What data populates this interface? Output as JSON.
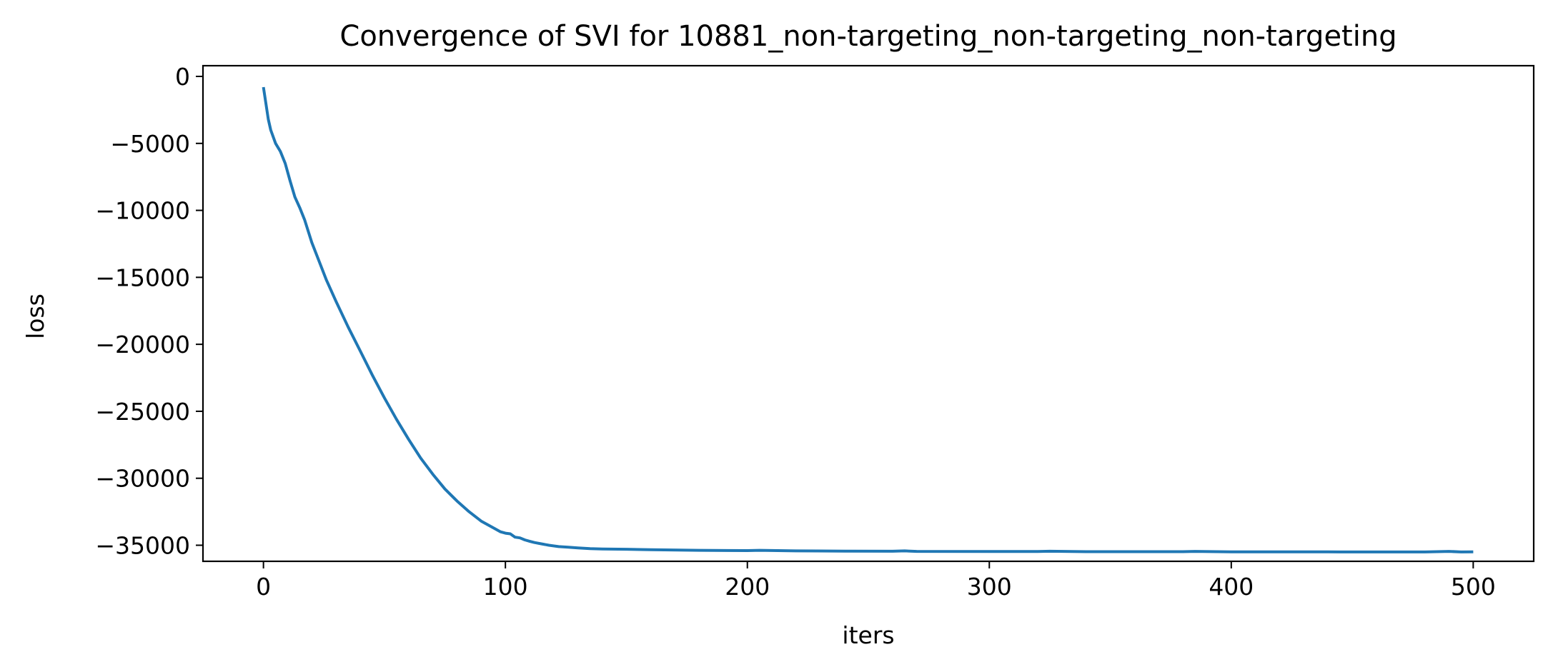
{
  "chart_data": {
    "type": "line",
    "title": "Convergence of SVI for 10881_non-targeting_non-targeting_non-targeting",
    "xlabel": "iters",
    "ylabel": "loss",
    "xlim": [
      -25,
      525
    ],
    "ylim": [
      -36200,
      800
    ],
    "xticks": [
      0,
      100,
      200,
      300,
      400,
      500
    ],
    "xtick_labels": [
      "0",
      "100",
      "200",
      "300",
      "400",
      "500"
    ],
    "yticks": [
      0,
      -5000,
      -10000,
      -15000,
      -20000,
      -25000,
      -30000,
      -35000
    ],
    "ytick_labels": [
      "0",
      "−5000",
      "−10000",
      "−15000",
      "−20000",
      "−25000",
      "−30000",
      "−35000"
    ],
    "grid": false,
    "legend": "none",
    "series": [
      {
        "color": "#1f77b4",
        "x": [
          0,
          1,
          2,
          3,
          5,
          7,
          9,
          11,
          13,
          15,
          17,
          20,
          23,
          26,
          30,
          35,
          40,
          45,
          50,
          55,
          60,
          65,
          70,
          75,
          80,
          85,
          90,
          95,
          98,
          100,
          102,
          104,
          106,
          108,
          110,
          112,
          115,
          118,
          122,
          126,
          130,
          135,
          140,
          150,
          160,
          180,
          200,
          205,
          220,
          240,
          260,
          265,
          270,
          300,
          320,
          325,
          340,
          380,
          385,
          400,
          440,
          445,
          480,
          490,
          495,
          500
        ],
        "y": [
          -800,
          -2000,
          -3200,
          -4000,
          -5000,
          -5600,
          -6500,
          -7800,
          -9000,
          -9800,
          -10700,
          -12400,
          -13800,
          -15200,
          -16800,
          -18700,
          -20500,
          -22300,
          -24000,
          -25600,
          -27100,
          -28500,
          -29700,
          -30800,
          -31700,
          -32500,
          -33200,
          -33700,
          -34000,
          -34100,
          -34150,
          -34400,
          -34450,
          -34600,
          -34700,
          -34800,
          -34900,
          -35000,
          -35100,
          -35150,
          -35200,
          -35250,
          -35280,
          -35300,
          -35330,
          -35380,
          -35400,
          -35380,
          -35420,
          -35440,
          -35450,
          -35420,
          -35460,
          -35470,
          -35470,
          -35450,
          -35480,
          -35480,
          -35460,
          -35490,
          -35490,
          -35500,
          -35500,
          -35460,
          -35500,
          -35490
        ]
      }
    ]
  }
}
